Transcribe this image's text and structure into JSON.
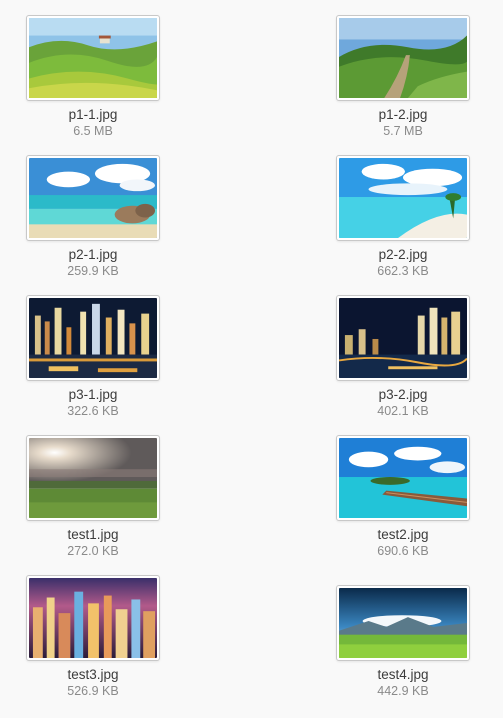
{
  "files": [
    {
      "name": "p1-1.jpg",
      "size": "6.5 MB",
      "thumbnail": "rolling-green-hills-landscape"
    },
    {
      "name": "p1-2.jpg",
      "size": "5.7 MB",
      "thumbnail": "country-path-through-green-hills"
    },
    {
      "name": "p2-1.jpg",
      "size": "259.9 KB",
      "thumbnail": "tropical-beach-with-rocks"
    },
    {
      "name": "p2-2.jpg",
      "size": "662.3 KB",
      "thumbnail": "turquoise-sea-white-sand-beach"
    },
    {
      "name": "p3-1.jpg",
      "size": "322.6 KB",
      "thumbnail": "city-skyline-at-night-with-boats"
    },
    {
      "name": "p3-2.jpg",
      "size": "402.1 KB",
      "thumbnail": "city-skyline-at-night-waterfront"
    },
    {
      "name": "test1.jpg",
      "size": "272.0 KB",
      "thumbnail": "misty-field-at-sunset"
    },
    {
      "name": "test2.jpg",
      "size": "690.6 KB",
      "thumbnail": "tropical-jetty-over-lagoon"
    },
    {
      "name": "test3.jpg",
      "size": "526.9 KB",
      "thumbnail": "night-city-aerial-view"
    },
    {
      "name": "test4.jpg",
      "size": "442.9 KB",
      "thumbnail": "green-meadow-mountains-blue-sky"
    }
  ]
}
